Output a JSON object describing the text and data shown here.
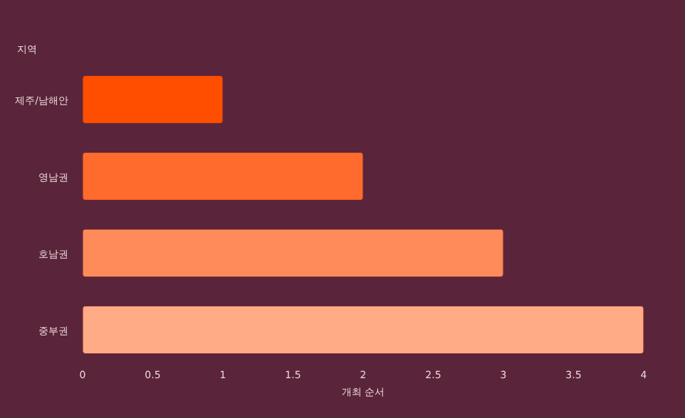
{
  "chart_data": {
    "type": "bar",
    "orientation": "horizontal",
    "categories": [
      "제주/남해안",
      "영남권",
      "호남권",
      "중부권"
    ],
    "values": [
      1,
      2,
      3,
      4
    ],
    "colors": [
      "#ff4e00",
      "#ff6b2d",
      "#ff8b5a",
      "#ffab86"
    ],
    "xlabel": "개최 순서",
    "ylabel": "지역",
    "xlim": [
      0,
      4
    ],
    "xticks": [
      0,
      0.5,
      1,
      1.5,
      2,
      2.5,
      3,
      3.5,
      4
    ]
  }
}
